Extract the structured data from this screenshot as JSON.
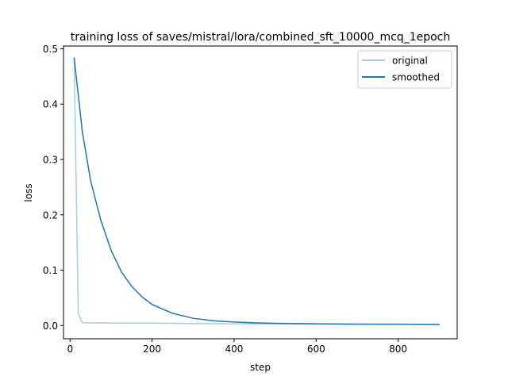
{
  "chart_data": {
    "type": "line",
    "title": "training loss of saves/mistral/lora/combined_sft_10000_mcq_1epoch",
    "xlabel": "step",
    "ylabel": "loss",
    "xlim": [
      -16,
      944
    ],
    "ylim": [
      -0.024,
      0.505
    ],
    "xticks": [
      0,
      200,
      400,
      600,
      800
    ],
    "xtick_labels": [
      "0",
      "200",
      "400",
      "600",
      "800"
    ],
    "yticks": [
      0.0,
      0.1,
      0.2,
      0.3,
      0.4,
      0.5
    ],
    "ytick_labels": [
      "0.0",
      "0.1",
      "0.2",
      "0.3",
      "0.4",
      "0.5"
    ],
    "grid": false,
    "legend_position": "upper right",
    "series": [
      {
        "name": "original",
        "color": "#a6cbe3",
        "x": [
          10,
          20,
          30,
          40,
          60,
          80,
          100,
          150,
          200,
          250,
          300,
          350,
          400,
          450,
          500,
          600,
          700,
          800,
          900
        ],
        "y": [
          0.483,
          0.022,
          0.005,
          0.0048,
          0.0047,
          0.0046,
          0.0045,
          0.0044,
          0.0043,
          0.004,
          0.0035,
          0.0032,
          0.003,
          0.0028,
          0.0027,
          0.0024,
          0.0022,
          0.002,
          0.0018
        ]
      },
      {
        "name": "smoothed",
        "color": "#1f77b4",
        "x": [
          10,
          30,
          50,
          75,
          100,
          125,
          150,
          175,
          200,
          250,
          300,
          350,
          400,
          450,
          500,
          600,
          700,
          800,
          900
        ],
        "y": [
          0.483,
          0.35,
          0.262,
          0.19,
          0.136,
          0.097,
          0.071,
          0.052,
          0.038,
          0.022,
          0.013,
          0.0085,
          0.0062,
          0.0048,
          0.004,
          0.0031,
          0.0026,
          0.0023,
          0.002
        ]
      }
    ]
  }
}
